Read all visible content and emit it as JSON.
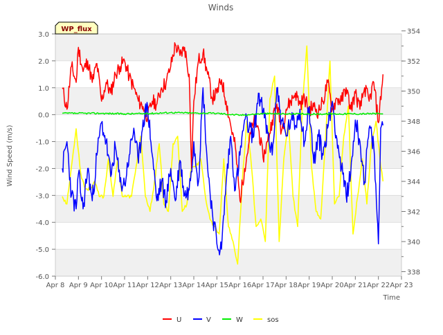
{
  "chart_data": {
    "type": "line",
    "title": "Winds",
    "xlabel": "Time",
    "ylabel": "Wind Speed (m/s)",
    "badge": "WP_flux",
    "xlim": [
      8,
      23
    ],
    "ylim": [
      -6,
      3
    ],
    "y2lim": [
      337.7,
      353.8
    ],
    "x_ticks": [
      {
        "v": 8,
        "label": "Apr 8"
      },
      {
        "v": 9,
        "label": "Apr 9"
      },
      {
        "v": 10,
        "label": "Apr 10"
      },
      {
        "v": 11,
        "label": "Apr 11"
      },
      {
        "v": 12,
        "label": "Apr 12"
      },
      {
        "v": 13,
        "label": "Apr 13"
      },
      {
        "v": 14,
        "label": "Apr 14"
      },
      {
        "v": 15,
        "label": "Apr 15"
      },
      {
        "v": 16,
        "label": "Apr 16"
      },
      {
        "v": 17,
        "label": "Apr 17"
      },
      {
        "v": 18,
        "label": "Apr 18"
      },
      {
        "v": 19,
        "label": "Apr 19"
      },
      {
        "v": 20,
        "label": "Apr 20"
      },
      {
        "v": 21,
        "label": "Apr 21"
      },
      {
        "v": 22,
        "label": "Apr 22"
      },
      {
        "v": 23,
        "label": "Apr 23"
      }
    ],
    "y_ticks": [
      {
        "v": 3,
        "label": "3.0"
      },
      {
        "v": 2,
        "label": "2.0"
      },
      {
        "v": 1,
        "label": "1.0"
      },
      {
        "v": 0,
        "label": "0.0"
      },
      {
        "v": -1,
        "label": "-1.0"
      },
      {
        "v": -2,
        "label": "-2.0"
      },
      {
        "v": -3,
        "label": "-3.0"
      },
      {
        "v": -4,
        "label": "-4.0"
      },
      {
        "v": -5,
        "label": "-5.0"
      },
      {
        "v": -6,
        "label": "-6.0"
      }
    ],
    "y2_ticks": [
      {
        "v": 338,
        "label": "338"
      },
      {
        "v": 340,
        "label": "340"
      },
      {
        "v": 342,
        "label": "342"
      },
      {
        "v": 344,
        "label": "344"
      },
      {
        "v": 346,
        "label": "346"
      },
      {
        "v": 348,
        "label": "348"
      },
      {
        "v": 350,
        "label": "350"
      },
      {
        "v": 352,
        "label": "352"
      },
      {
        "v": 354,
        "label": "354"
      }
    ],
    "bands": [
      [
        2,
        3
      ],
      [
        0,
        1
      ],
      [
        -2,
        -1
      ],
      [
        -4,
        -3
      ],
      [
        -6,
        -5
      ]
    ],
    "series": [
      {
        "name": "U",
        "color": "#ff0000",
        "axis": "left",
        "x": [
          8.3,
          8.5,
          8.7,
          8.9,
          9.0,
          9.2,
          9.4,
          9.6,
          9.8,
          10.0,
          10.2,
          10.4,
          10.6,
          10.8,
          11.0,
          11.2,
          11.4,
          11.6,
          11.8,
          12.0,
          12.2,
          12.4,
          12.6,
          12.8,
          13.0,
          13.2,
          13.4,
          13.6,
          13.8,
          13.9,
          14.0,
          14.2,
          14.4,
          14.6,
          14.8,
          15.0,
          15.2,
          15.4,
          15.6,
          15.8,
          16.0,
          16.2,
          16.4,
          16.6,
          16.8,
          17.0,
          17.2,
          17.4,
          17.6,
          17.8,
          18.0,
          18.2,
          18.4,
          18.6,
          18.8,
          19.0,
          19.2,
          19.4,
          19.6,
          19.8,
          20.0,
          20.2,
          20.4,
          20.6,
          20.8,
          21.0,
          21.2,
          21.4,
          21.6,
          21.8,
          22.0,
          22.2
        ],
        "values": [
          1.0,
          0.2,
          1.8,
          1.2,
          2.5,
          1.6,
          2.0,
          1.2,
          1.9,
          0.5,
          1.2,
          0.8,
          1.5,
          1.8,
          2.0,
          1.4,
          1.0,
          0.5,
          0.3,
          -0.1,
          0.5,
          0.4,
          1.0,
          1.2,
          1.8,
          2.6,
          2.2,
          2.5,
          1.5,
          -2.0,
          0.5,
          2.0,
          2.3,
          1.5,
          0.6,
          0.8,
          1.3,
          0.5,
          -0.4,
          -1.2,
          -3.2,
          -2.0,
          -1.0,
          -0.2,
          -0.5,
          -1.6,
          -1.0,
          -0.2,
          0.4,
          -0.6,
          0.2,
          0.5,
          0.8,
          0.4,
          0.6,
          0.2,
          0.3,
          0.1,
          0.5,
          1.2,
          0.2,
          0.6,
          0.5,
          1.0,
          0.2,
          0.8,
          0.2,
          1.0,
          0.5,
          1.2,
          -0.3,
          1.5
        ]
      },
      {
        "name": "V",
        "color": "#0000ff",
        "axis": "left",
        "x": [
          8.3,
          8.5,
          8.7,
          8.9,
          9.0,
          9.2,
          9.4,
          9.6,
          9.8,
          10.0,
          10.2,
          10.4,
          10.6,
          10.8,
          11.0,
          11.2,
          11.4,
          11.6,
          11.8,
          12.0,
          12.2,
          12.4,
          12.6,
          12.8,
          13.0,
          13.2,
          13.4,
          13.6,
          13.8,
          14.0,
          14.2,
          14.4,
          14.6,
          14.8,
          15.0,
          15.2,
          15.4,
          15.6,
          15.8,
          16.0,
          16.2,
          16.4,
          16.6,
          16.8,
          17.0,
          17.2,
          17.4,
          17.6,
          17.8,
          18.0,
          18.2,
          18.4,
          18.6,
          18.8,
          19.0,
          19.2,
          19.4,
          19.6,
          19.8,
          20.0,
          20.2,
          20.4,
          20.6,
          20.8,
          21.0,
          21.2,
          21.4,
          21.6,
          21.8,
          22.0,
          22.1,
          22.2
        ],
        "values": [
          -2.0,
          -1.0,
          -3.0,
          -3.5,
          -2.2,
          -3.5,
          -2.0,
          -3.2,
          -1.5,
          -0.3,
          -1.0,
          -2.3,
          -1.2,
          -2.5,
          -2.6,
          -1.5,
          -0.5,
          -1.8,
          -0.2,
          0.3,
          -1.5,
          -3.2,
          -2.5,
          -3.2,
          -2.0,
          -3.2,
          -1.7,
          -3.0,
          -2.8,
          -1.0,
          -2.5,
          1.0,
          -2.0,
          -3.6,
          -4.8,
          -5.0,
          -2.5,
          -0.8,
          -2.8,
          -1.5,
          -0.2,
          -0.5,
          -0.8,
          0.8,
          0.1,
          -0.7,
          -1.5,
          1.0,
          -0.2,
          -0.8,
          -0.2,
          -0.4,
          0.2,
          -1.0,
          0.3,
          -1.8,
          -0.8,
          -1.5,
          -0.5,
          0.5,
          -0.9,
          -2.0,
          -3.0,
          -2.2,
          -0.2,
          -1.0,
          -2.5,
          -0.5,
          -1.2,
          -4.8,
          -0.5,
          -0.4
        ]
      },
      {
        "name": "W",
        "color": "#00ee00",
        "axis": "left",
        "x": [
          8.3,
          9.0,
          10.0,
          11.0,
          12.0,
          13.0,
          14.0,
          15.0,
          16.0,
          17.0,
          18.0,
          19.0,
          20.0,
          21.0,
          22.0,
          22.2
        ],
        "values": [
          0.05,
          0.05,
          0.05,
          0.03,
          0.04,
          0.08,
          0.06,
          0.05,
          -0.02,
          0.04,
          0.03,
          0.02,
          0.03,
          0.03,
          0.04,
          0.02
        ]
      },
      {
        "name": "sos",
        "color": "#ffff00",
        "axis": "right",
        "x": [
          8.3,
          8.5,
          8.7,
          8.9,
          9.1,
          9.3,
          9.5,
          9.7,
          9.9,
          10.1,
          10.3,
          10.5,
          10.7,
          10.9,
          11.1,
          11.3,
          11.5,
          11.7,
          11.9,
          12.1,
          12.3,
          12.5,
          12.7,
          12.9,
          13.1,
          13.3,
          13.5,
          13.7,
          13.9,
          14.1,
          14.3,
          14.5,
          14.7,
          14.9,
          15.1,
          15.3,
          15.5,
          15.7,
          15.9,
          16.1,
          16.3,
          16.5,
          16.7,
          16.9,
          17.1,
          17.3,
          17.5,
          17.7,
          17.9,
          18.1,
          18.3,
          18.5,
          18.7,
          18.9,
          19.1,
          19.3,
          19.5,
          19.7,
          19.9,
          20.1,
          20.3,
          20.5,
          20.7,
          20.9,
          21.1,
          21.3,
          21.5,
          21.7,
          21.9,
          22.1,
          22.2
        ],
        "values": [
          343,
          342.5,
          345,
          347.5,
          344.5,
          343.5,
          343.5,
          344,
          343,
          343,
          345.5,
          343,
          345.5,
          343,
          343,
          343,
          345,
          347,
          343,
          342,
          344,
          346.5,
          342.5,
          342,
          346.5,
          347,
          342,
          342.5,
          345,
          345,
          345.5,
          343,
          341.5,
          341,
          340.5,
          345.5,
          341,
          340,
          338.5,
          344,
          348,
          345,
          341,
          341.5,
          340,
          349.5,
          351,
          340,
          345.5,
          348,
          343,
          341,
          349,
          353,
          345,
          342,
          341.5,
          346.5,
          352,
          342.5,
          343,
          347,
          349,
          340.5,
          343,
          345.5,
          342.5,
          346.5,
          348,
          345,
          344
        ]
      }
    ]
  }
}
